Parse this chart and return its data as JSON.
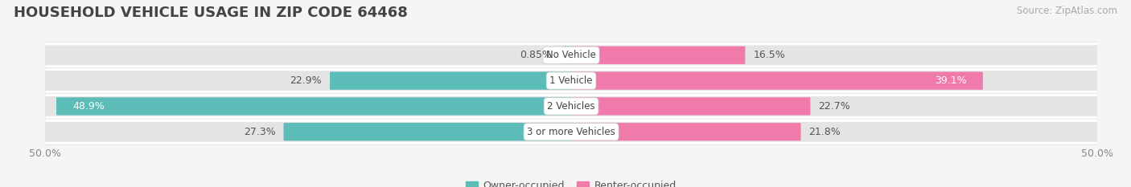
{
  "title": "HOUSEHOLD VEHICLE USAGE IN ZIP CODE 64468",
  "source": "Source: ZipAtlas.com",
  "categories": [
    "No Vehicle",
    "1 Vehicle",
    "2 Vehicles",
    "3 or more Vehicles"
  ],
  "owner_values": [
    0.85,
    22.9,
    48.9,
    27.3
  ],
  "renter_values": [
    16.5,
    39.1,
    22.7,
    21.8
  ],
  "owner_color": "#5bbcb8",
  "renter_color": "#f07aaa",
  "owner_label": "Owner-occupied",
  "renter_label": "Renter-occupied",
  "xlim": [
    -50,
    50
  ],
  "bar_height": 0.62,
  "fig_bg_color": "#f5f5f5",
  "bar_bg_color": "#e4e4e4",
  "row_bg_color": "#f0f0f0",
  "title_fontsize": 13,
  "source_fontsize": 8.5,
  "label_fontsize": 9,
  "category_fontsize": 8.5,
  "white_label_rows": [
    1,
    2
  ]
}
